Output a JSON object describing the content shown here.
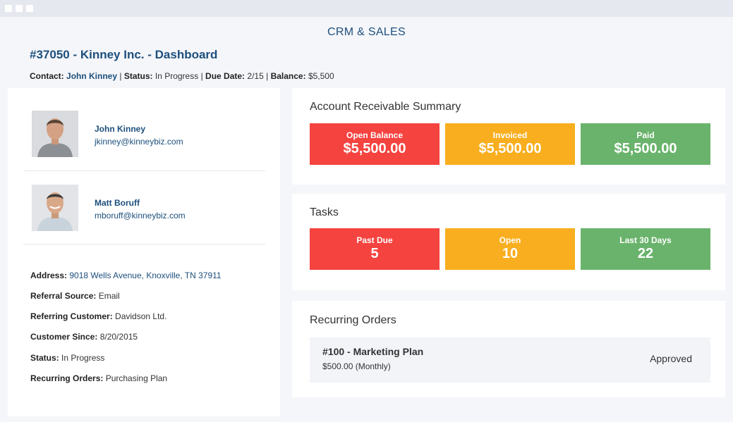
{
  "header": {
    "app_title": "CRM & SALES",
    "page_title": "#37050 - Kinney Inc. - Dashboard"
  },
  "meta": {
    "contact_label": "Contact:",
    "contact_value": "John Kinney",
    "sep1": "|",
    "status_label": "Status:",
    "status_value": "In Progress",
    "sep2": "|",
    "due_label": "Due Date:",
    "due_value": "2/15",
    "sep3": "|",
    "balance_label": "Balance:",
    "balance_value": "$5,500"
  },
  "contacts": [
    {
      "name": "John Kinney",
      "email": "jkinney@kinneybiz.com"
    },
    {
      "name": "Matt Boruff",
      "email": "mboruff@kinneybiz.com"
    }
  ],
  "details": [
    {
      "label": "Address:",
      "value": "9018 Wells Avenue, Knoxville, TN 37911"
    },
    {
      "label": "Referral Source:",
      "value": "Email"
    },
    {
      "label": "Referring Customer:",
      "value": "Davidson Ltd."
    },
    {
      "label": "Customer Since:",
      "value": "8/20/2015"
    },
    {
      "label": "Status:",
      "value": "In Progress"
    },
    {
      "label": "Recurring Orders:",
      "value": "Purchasing Plan"
    }
  ],
  "ar_summary": {
    "title": "Account Receivable Summary",
    "tiles": [
      {
        "label": "Open Balance",
        "value": "$5,500.00",
        "color": "#f5433f"
      },
      {
        "label": "Invoiced",
        "value": "$5,500.00",
        "color": "#f8ae1e"
      },
      {
        "label": "Paid",
        "value": "$5,500.00",
        "color": "#6ab36c"
      }
    ]
  },
  "tasks": {
    "title": "Tasks",
    "tiles": [
      {
        "label": "Past Due",
        "value": "5",
        "color": "#f5433f"
      },
      {
        "label": "Open",
        "value": "10",
        "color": "#f8ae1e"
      },
      {
        "label": "Last 30 Days",
        "value": "22",
        "color": "#6ab36c"
      }
    ]
  },
  "recurring_orders": {
    "title": "Recurring Orders",
    "items": [
      {
        "name": "#100 - Marketing Plan",
        "price": "$500.00 (Monthly)",
        "status": "Approved"
      }
    ]
  }
}
